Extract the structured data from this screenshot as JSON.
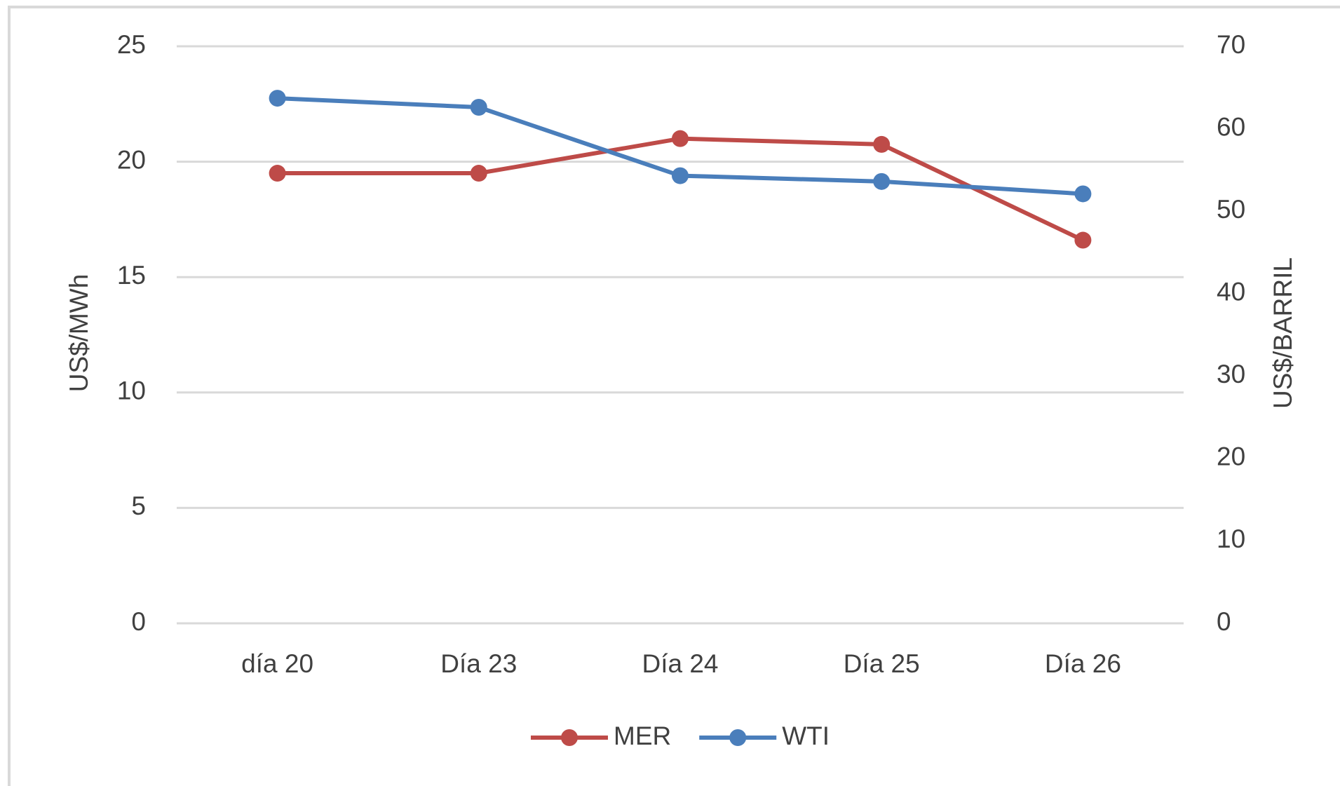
{
  "chart_data": {
    "type": "line",
    "categories": [
      "día 20",
      "Día 23",
      "Día 24",
      "Día 25",
      "Día 26"
    ],
    "series": [
      {
        "name": "MER",
        "color": "#be4b48",
        "values": [
          19.5,
          19.5,
          21,
          20.75,
          16.6
        ]
      },
      {
        "name": "WTI",
        "color": "#4a7ebb",
        "axis": "y2",
        "values": [
          63.7,
          62.6,
          54.3,
          53.6,
          52.1
        ]
      }
    ],
    "ylabel": "US$/MWh",
    "y2label": "US$/BARRIL",
    "ylim": [
      0,
      25
    ],
    "yticks": [
      0,
      5,
      10,
      15,
      20,
      25
    ],
    "y2lim": [
      0,
      70
    ],
    "y2ticks": [
      0,
      10,
      20,
      30,
      40,
      50,
      60,
      70
    ],
    "grid": true,
    "legend": "bottom"
  }
}
